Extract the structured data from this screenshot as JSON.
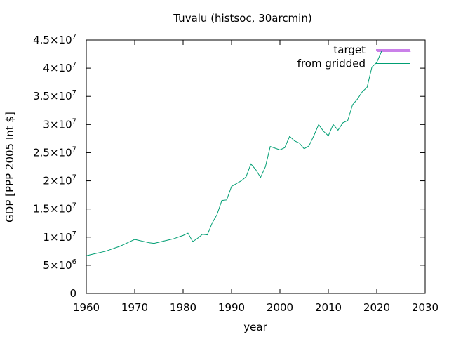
{
  "chart_data": {
    "type": "line",
    "title": "Tuvalu (histsoc, 30arcmin)",
    "xlabel": "year",
    "ylabel": "GDP [PPP 2005 Int $]",
    "xlim": [
      1960,
      2030
    ],
    "ylim": [
      0,
      45000000
    ],
    "xticks": [
      1960,
      1970,
      1980,
      1990,
      2000,
      2010,
      2020,
      2030
    ],
    "xtick_labels": [
      "1960",
      "1970",
      "1980",
      "1990",
      "2000",
      "2010",
      "2020",
      "2030"
    ],
    "yticks": [
      0,
      5000000,
      10000000,
      15000000,
      20000000,
      25000000,
      30000000,
      35000000,
      40000000,
      45000000
    ],
    "ytick_labels": [
      {
        "mant": "0",
        "exp": ""
      },
      {
        "mant": "5×10",
        "exp": "6"
      },
      {
        "mant": "1×10",
        "exp": "7"
      },
      {
        "mant": "1.5×10",
        "exp": "7"
      },
      {
        "mant": "2×10",
        "exp": "7"
      },
      {
        "mant": "2.5×10",
        "exp": "7"
      },
      {
        "mant": "3×10",
        "exp": "7"
      },
      {
        "mant": "3.5×10",
        "exp": "7"
      },
      {
        "mant": "4×10",
        "exp": "7"
      },
      {
        "mant": "4.5×10",
        "exp": "7"
      }
    ],
    "grid": false,
    "legend_position": "top-right",
    "series": [
      {
        "name": "target",
        "color": "#9400d3",
        "x": [
          2020,
          2021,
          2022,
          2023,
          2024,
          2025,
          2026,
          2027
        ],
        "y": [
          43000000,
          43000000,
          43000000,
          43000000,
          43000000,
          43000000,
          43000000,
          43000000
        ]
      },
      {
        "name": "from gridded",
        "color": "#009e73",
        "x": [
          1960,
          1961,
          1962,
          1963,
          1964,
          1965,
          1966,
          1967,
          1968,
          1969,
          1970,
          1971,
          1972,
          1973,
          1974,
          1975,
          1976,
          1977,
          1978,
          1979,
          1980,
          1981,
          1982,
          1983,
          1984,
          1985,
          1986,
          1987,
          1988,
          1989,
          1990,
          1991,
          1992,
          1993,
          1994,
          1995,
          1996,
          1997,
          1998,
          1999,
          2000,
          2001,
          2002,
          2003,
          2004,
          2005,
          2006,
          2007,
          2008,
          2009,
          2010,
          2011,
          2012,
          2013,
          2014,
          2015,
          2016,
          2017,
          2018,
          2019,
          2020,
          2021
        ],
        "y": [
          6700000,
          6900000,
          7100000,
          7300000,
          7500000,
          7800000,
          8100000,
          8400000,
          8800000,
          9200000,
          9600000,
          9400000,
          9200000,
          9000000,
          8900000,
          9100000,
          9300000,
          9500000,
          9700000,
          10000000,
          10300000,
          10700000,
          9200000,
          9800000,
          10500000,
          10400000,
          12500000,
          14000000,
          16500000,
          16600000,
          19000000,
          19500000,
          20000000,
          20700000,
          23000000,
          22000000,
          20600000,
          22500000,
          26100000,
          25800000,
          25500000,
          25900000,
          27900000,
          27100000,
          26700000,
          25700000,
          26200000,
          28000000,
          30000000,
          28800000,
          28000000,
          30000000,
          29000000,
          30300000,
          30700000,
          33500000,
          34500000,
          35800000,
          36600000,
          40200000,
          41000000,
          43000000
        ]
      }
    ]
  }
}
